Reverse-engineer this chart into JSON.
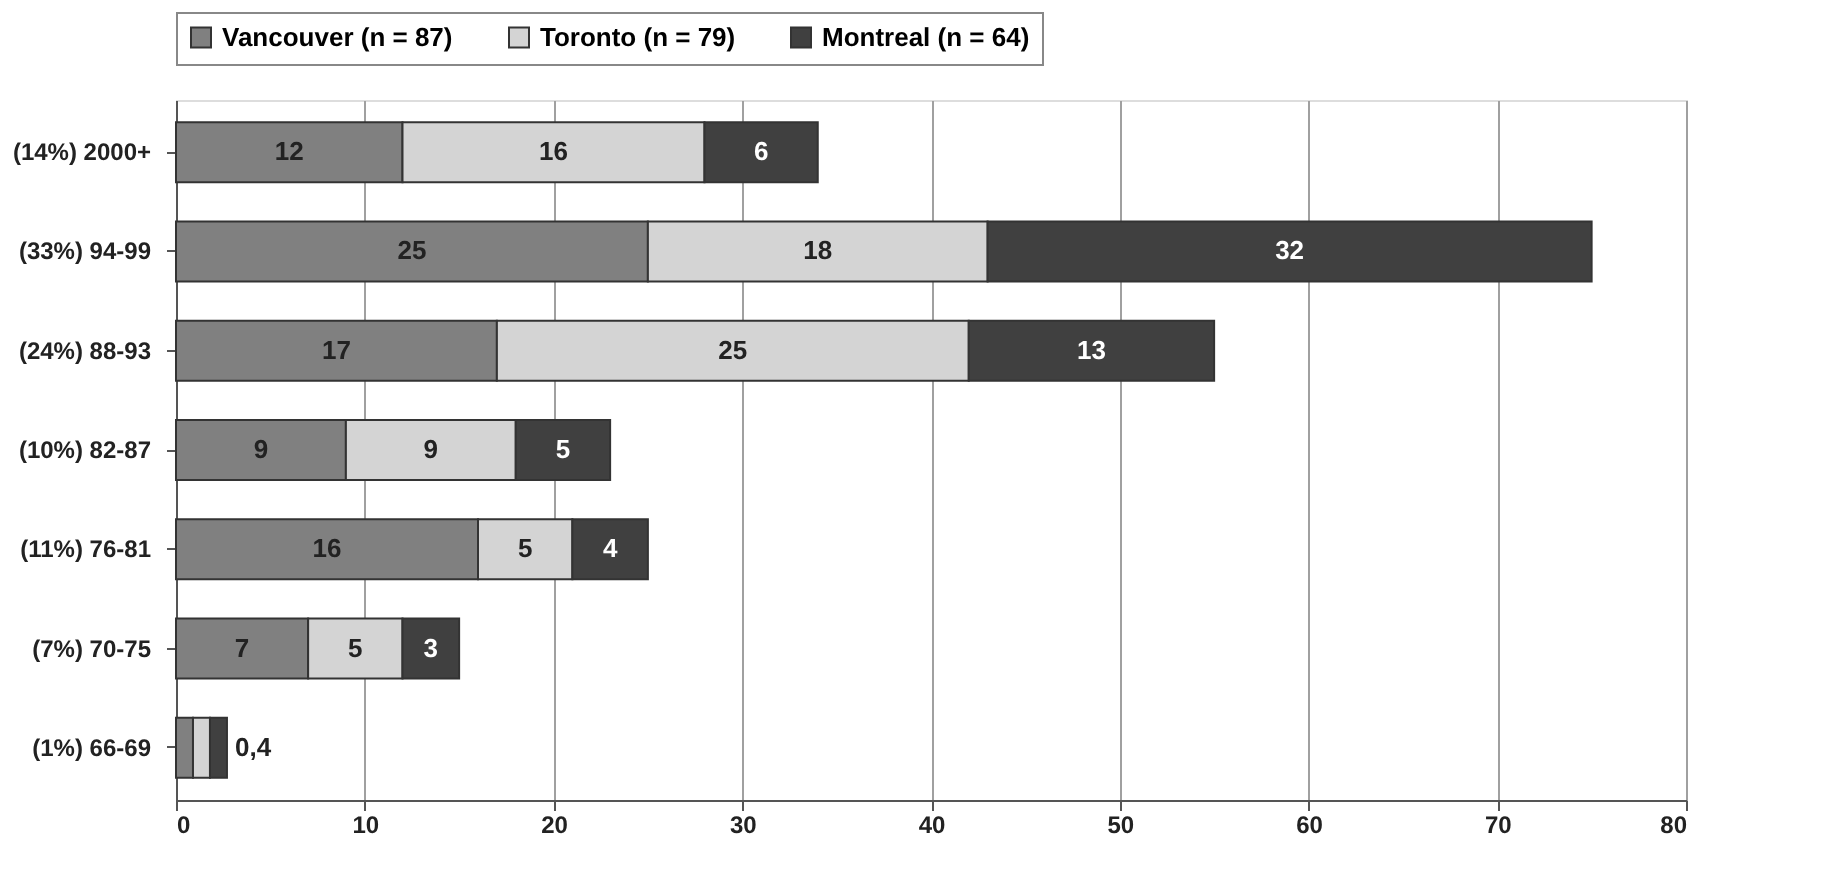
{
  "chart_data": {
    "type": "bar",
    "orientation": "horizontal",
    "stacked": true,
    "categories": [
      "(14%) 2000+",
      "(33%) 94-99",
      "(24%) 88-93",
      "(10%) 82-87",
      "(11%) 76-81",
      "(7%) 70-75",
      "(1%) 66-69"
    ],
    "series": [
      {
        "name": "Vancouver (n = 87)",
        "color": "#808080",
        "values": [
          12,
          25,
          17,
          9,
          16,
          7,
          0.9
        ],
        "value_labels": [
          "12",
          "25",
          "17",
          "9",
          "16",
          "7",
          null
        ]
      },
      {
        "name": "Toronto (n = 79)",
        "color": "#d4d4d4",
        "values": [
          16,
          18,
          25,
          9,
          5,
          5,
          0.9
        ],
        "value_labels": [
          "16",
          "18",
          "25",
          "9",
          "5",
          "5",
          null
        ]
      },
      {
        "name": "Montreal (n = 64)",
        "color": "#404040",
        "values": [
          6,
          32,
          13,
          5,
          4,
          3,
          0.9
        ],
        "value_labels": [
          "6",
          "32",
          "13",
          "5",
          "4",
          "3",
          null
        ]
      }
    ],
    "annotations": [
      {
        "text": "0,4",
        "x": 2.7,
        "y": "(1%) 66-69"
      }
    ],
    "xlim": [
      0,
      80
    ],
    "xticks": [
      0,
      10,
      20,
      30,
      40,
      50,
      60,
      70,
      80
    ],
    "grid": "x",
    "legend": "top"
  }
}
